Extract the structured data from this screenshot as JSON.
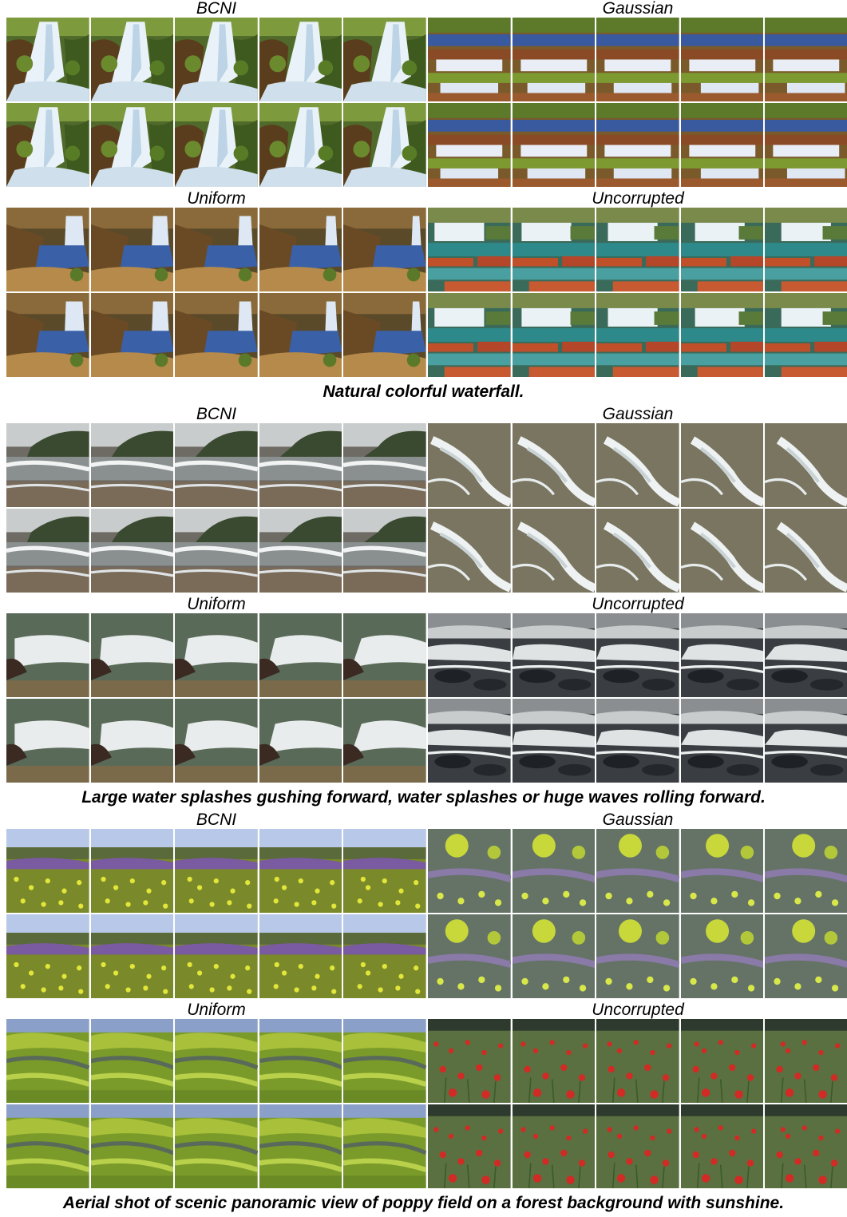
{
  "blocks": [
    {
      "caption": "Natural colorful waterfall.",
      "scene": "waterfall",
      "quadrants": [
        {
          "label": "BCNI",
          "variant": "a"
        },
        {
          "label": "Gaussian",
          "variant": "b"
        },
        {
          "label": "Uniform",
          "variant": "c"
        },
        {
          "label": "Uncorrupted",
          "variant": "d"
        }
      ]
    },
    {
      "caption": "Large water splashes gushing forward, water splashes or huge waves rolling forward.",
      "scene": "waves",
      "quadrants": [
        {
          "label": "BCNI",
          "variant": "a"
        },
        {
          "label": "Gaussian",
          "variant": "b"
        },
        {
          "label": "Uniform",
          "variant": "c"
        },
        {
          "label": "Uncorrupted",
          "variant": "d"
        }
      ]
    },
    {
      "caption": "Aerial shot of scenic panoramic view of poppy field on a forest background with sunshine.",
      "scene": "field",
      "quadrants": [
        {
          "label": "BCNI",
          "variant": "a"
        },
        {
          "label": "Gaussian",
          "variant": "b"
        },
        {
          "label": "Uniform",
          "variant": "c"
        },
        {
          "label": "Uncorrupted",
          "variant": "d"
        }
      ]
    }
  ]
}
